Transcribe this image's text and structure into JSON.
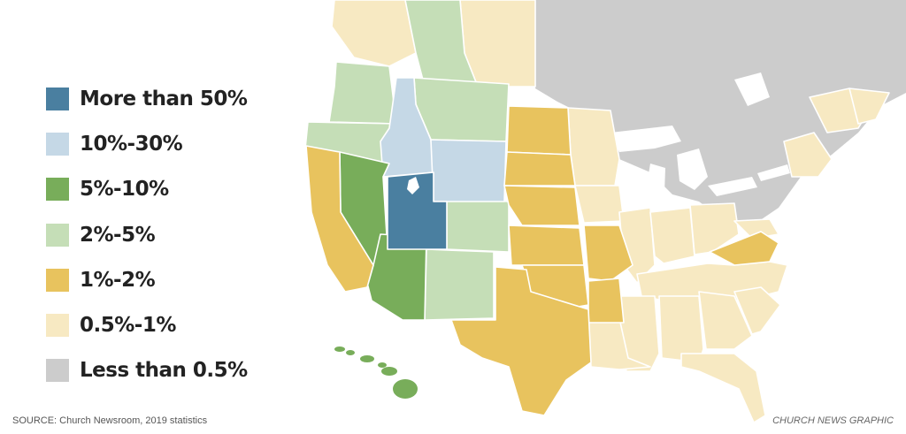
{
  "colors": {
    "more_than_50": "#4a7fa0",
    "p10_30": "#c5d8e6",
    "p5_10": "#78ad5a",
    "p2_5": "#c5deb7",
    "p1_2": "#e8c35e",
    "p05_1": "#f7e9c2",
    "less_than_05": "#cccccc"
  },
  "legend": {
    "items": [
      {
        "label": "More than 50%",
        "color": "#4a7fa0"
      },
      {
        "label": "10%-30%",
        "color": "#c5d8e6"
      },
      {
        "label": "5%-10%",
        "color": "#78ad5a"
      },
      {
        "label": "2%-5%",
        "color": "#c5deb7"
      },
      {
        "label": "1%-2%",
        "color": "#e8c35e"
      },
      {
        "label": "0.5%-1%",
        "color": "#f7e9c2"
      },
      {
        "label": "Less than 0.5%",
        "color": "#cccccc"
      }
    ]
  },
  "footer": {
    "source": "SOURCE: Church Newsroom, 2019 statistics",
    "credit": "CHURCH NEWS GRAPHIC"
  }
}
